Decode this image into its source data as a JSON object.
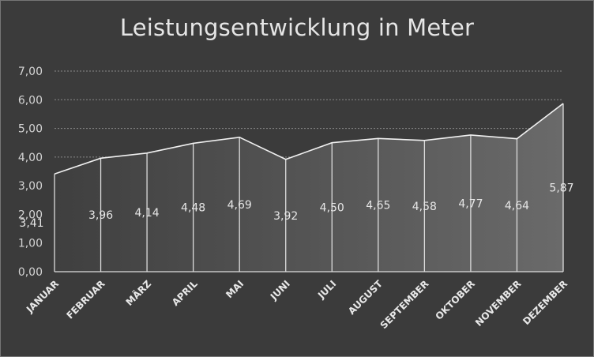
{
  "chart_data": {
    "type": "area",
    "title": "Leistungsentwicklung in Meter",
    "categories": [
      "JANUAR",
      "FEBRUAR",
      "MÄRZ",
      "APRIL",
      "MAI",
      "JUNI",
      "JULI",
      "AUGUST",
      "SEPTEMBER",
      "OKTOBER",
      "NOVEMBER",
      "DEZEMBER"
    ],
    "values": [
      3.41,
      3.96,
      4.14,
      4.48,
      4.69,
      3.92,
      4.5,
      4.65,
      4.58,
      4.77,
      4.64,
      5.87
    ],
    "data_labels": [
      "3,41",
      "3,96",
      "4,14",
      "4,48",
      "4,69",
      "3,92",
      "4,50",
      "4,65",
      "4,58",
      "4,77",
      "4,64",
      "5,87"
    ],
    "yticks": [
      "0,00",
      "1,00",
      "2,00",
      "3,00",
      "4,00",
      "5,00",
      "6,00",
      "7,00"
    ],
    "ylim": [
      0,
      7
    ],
    "grid": true,
    "colors": {
      "background": "#3b3b3b",
      "area_fill_start": "#3f3f3f",
      "area_fill_end": "#6a6a6a",
      "line": "#f0f0f0",
      "gridline": "#8a8a8a",
      "text": "#e6e6e6"
    }
  }
}
